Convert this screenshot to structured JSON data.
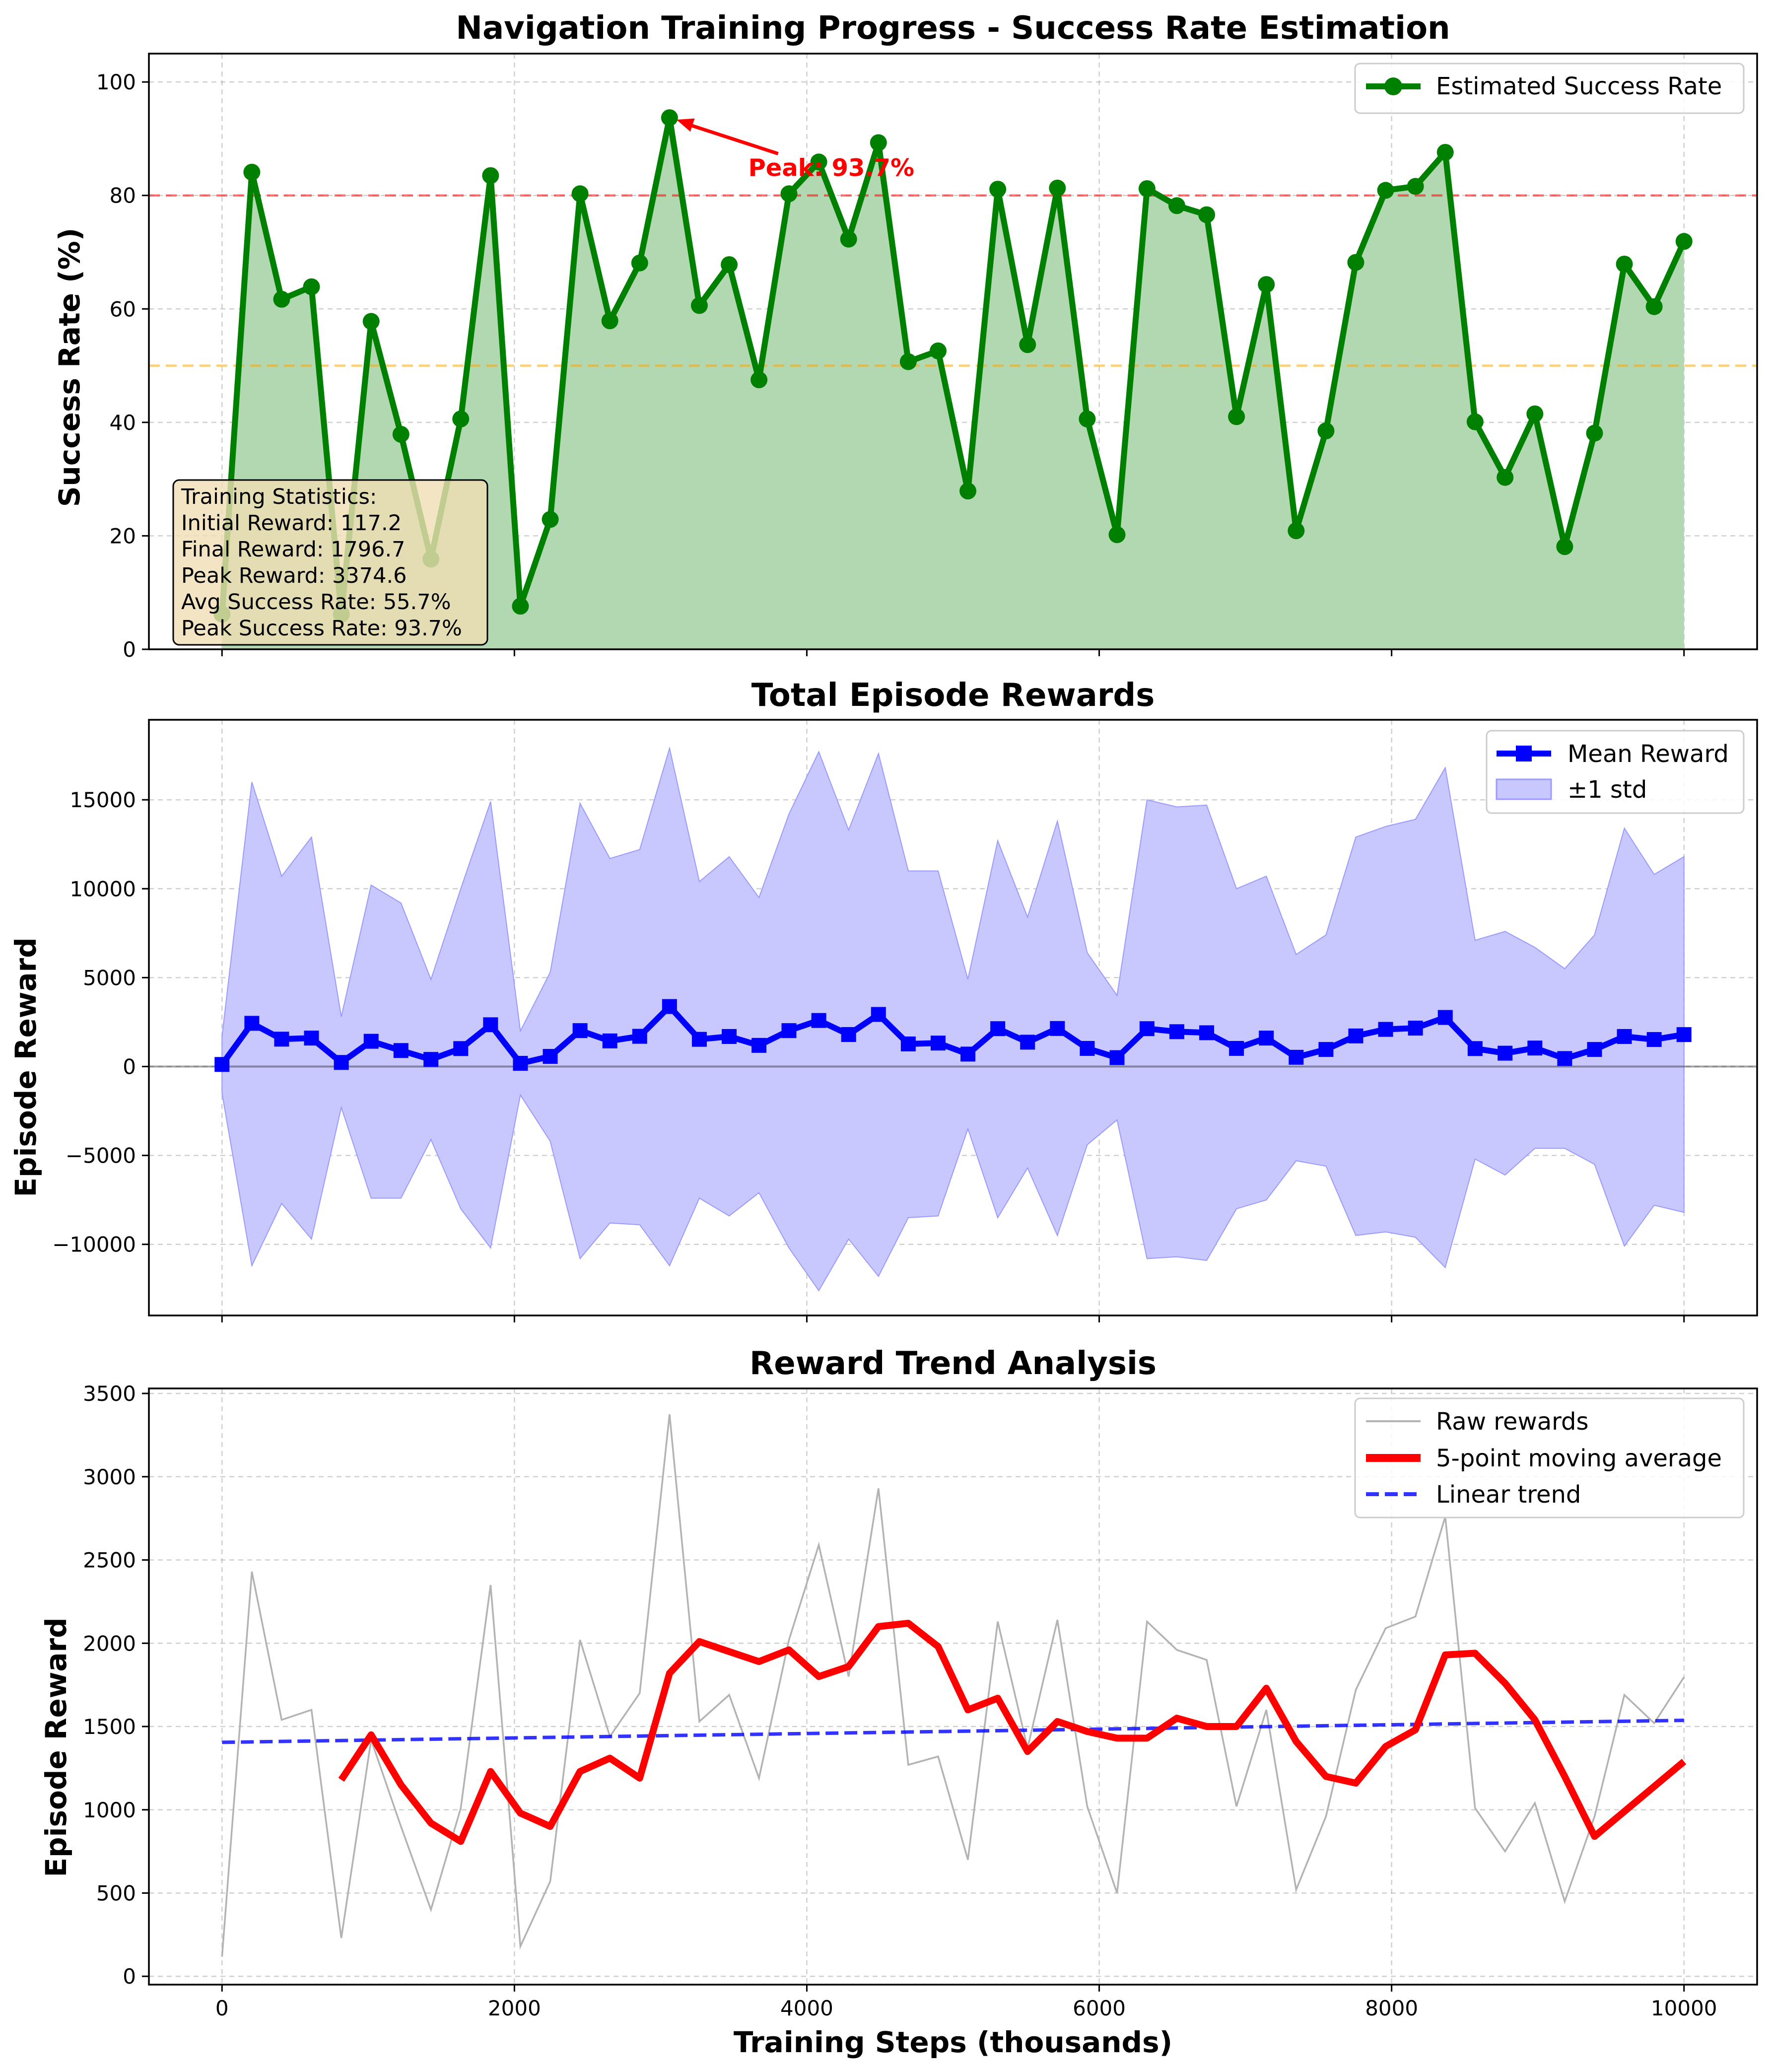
{
  "figure": {
    "xlabel": "Training Steps (thousands)"
  },
  "chart_data": [
    {
      "type": "line",
      "title": "Navigation Training Progress - Success Rate Estimation",
      "xlabel": "",
      "ylabel": "Success Rate (%)",
      "xlim": [
        -500,
        10500
      ],
      "ylim": [
        0,
        105
      ],
      "xticks": [
        0,
        2000,
        4000,
        6000,
        8000,
        10000
      ],
      "yticks": [
        0,
        20,
        40,
        60,
        80,
        100
      ],
      "grid": true,
      "legend_position": "top-right",
      "series": [
        {
          "name": "Estimated Success Rate",
          "color": "#008000",
          "fill_color": "#b2d8b2",
          "marker": "circle",
          "x": [
            0,
            204,
            408,
            612,
            816,
            1020,
            1224,
            1429,
            1633,
            1837,
            2041,
            2245,
            2449,
            2653,
            2857,
            3061,
            3265,
            3469,
            3673,
            3878,
            4082,
            4286,
            4490,
            4694,
            4898,
            5102,
            5306,
            5510,
            5714,
            5918,
            6122,
            6327,
            6531,
            6735,
            6939,
            7143,
            7347,
            7551,
            7755,
            7959,
            8163,
            8367,
            8571,
            8776,
            8980,
            9184,
            9388,
            9592,
            9796,
            10000
          ],
          "y": [
            6.2,
            84.1,
            61.7,
            63.9,
            6.2,
            57.8,
            37.9,
            15.9,
            40.6,
            83.5,
            7.6,
            22.9,
            80.3,
            57.9,
            68.1,
            93.7,
            60.6,
            67.8,
            47.5,
            80.3,
            85.9,
            72.3,
            89.3,
            50.7,
            52.6,
            27.9,
            81.1,
            53.7,
            81.3,
            40.6,
            20.2,
            81.2,
            78.2,
            76.6,
            41.0,
            64.3,
            20.9,
            38.5,
            68.2,
            80.9,
            81.6,
            87.6,
            40.1,
            30.3,
            41.5,
            18.1,
            38.1,
            67.9,
            60.4,
            71.9
          ]
        }
      ],
      "reference_lines": [
        {
          "y": 80,
          "color": "#ff0000"
        },
        {
          "y": 50,
          "color": "#ffa500"
        }
      ],
      "annotation": {
        "text": "Peak: 93.7%",
        "x": 3061,
        "y": 93.7,
        "text_x": 3600,
        "text_y": 85,
        "color": "#ff0000"
      },
      "stats_box": {
        "lines": [
          "Training Statistics:",
          "Initial Reward: 117.2",
          "Final Reward: 1796.7",
          "Peak Reward: 3374.6",
          "Avg Success Rate: 55.7%",
          "Peak Success Rate: 93.7%"
        ],
        "background": "#f0deb4"
      }
    },
    {
      "type": "line",
      "title": "Total Episode Rewards",
      "xlabel": "",
      "ylabel": "Episode Reward",
      "xlim": [
        -500,
        10500
      ],
      "ylim": [
        -14000,
        19500
      ],
      "xticks": [
        0,
        2000,
        4000,
        6000,
        8000,
        10000
      ],
      "yticks": [
        -10000,
        -5000,
        0,
        5000,
        10000,
        15000
      ],
      "grid": true,
      "legend_position": "top-right",
      "zero_line": true,
      "series": [
        {
          "name": "Mean Reward",
          "color": "#0000ff",
          "marker": "square",
          "x": [
            0,
            204,
            408,
            612,
            816,
            1020,
            1224,
            1429,
            1633,
            1837,
            2041,
            2245,
            2449,
            2653,
            2857,
            3061,
            3265,
            3469,
            3673,
            3878,
            4082,
            4286,
            4490,
            4694,
            4898,
            5102,
            5306,
            5510,
            5714,
            5918,
            6122,
            6327,
            6531,
            6735,
            6939,
            7143,
            7347,
            7551,
            7755,
            7959,
            8163,
            8367,
            8571,
            8776,
            8980,
            9184,
            9388,
            9592,
            9796,
            10000
          ],
          "y": [
            117.2,
            2430,
            1540,
            1600,
            230,
            1420,
            900,
            400,
            1010,
            2350,
            180,
            570,
            2020,
            1440,
            1700,
            3374.6,
            1530,
            1690,
            1190,
            2020,
            2590,
            1800,
            2930,
            1270,
            1320,
            700,
            2130,
            1370,
            2140,
            1020,
            500,
            2130,
            1960,
            1900,
            1020,
            1600,
            520,
            960,
            1720,
            2090,
            2160,
            2760,
            1010,
            750,
            1040,
            450,
            960,
            1690,
            1520,
            1796.7
          ]
        },
        {
          "name": "±1 std",
          "color": "#0000ff",
          "fill_color": "#c8c8ff",
          "upper": [
            1700,
            16000,
            10700,
            12900,
            2800,
            10200,
            9200,
            4900,
            10000,
            14900,
            2000,
            5300,
            14800,
            11700,
            12200,
            17900,
            10400,
            11800,
            9500,
            14200,
            17700,
            13300,
            17600,
            11000,
            11000,
            4900,
            12700,
            8400,
            13800,
            6400,
            4000,
            15000,
            14600,
            14700,
            10000,
            10700,
            6300,
            7400,
            12900,
            13500,
            13900,
            16800,
            7100,
            7600,
            6700,
            5500,
            7400,
            13400,
            10800,
            11800
          ],
          "lower": [
            -1500,
            -11200,
            -7700,
            -9700,
            -2300,
            -7400,
            -7400,
            -4100,
            -8000,
            -10200,
            -1600,
            -4200,
            -10800,
            -8800,
            -8900,
            -11200,
            -7400,
            -8400,
            -7100,
            -10200,
            -12600,
            -9700,
            -11800,
            -8500,
            -8400,
            -3500,
            -8500,
            -5700,
            -9500,
            -4400,
            -3000,
            -10800,
            -10700,
            -10900,
            -8000,
            -7500,
            -5300,
            -5600,
            -9500,
            -9300,
            -9600,
            -11300,
            -5200,
            -6100,
            -4600,
            -4600,
            -5500,
            -10100,
            -7800,
            -8200
          ]
        }
      ]
    },
    {
      "type": "line",
      "title": "Reward Trend Analysis",
      "xlabel": "Training Steps (thousands)",
      "ylabel": "Episode Reward",
      "xlim": [
        -500,
        10500
      ],
      "ylim": [
        -50,
        3530
      ],
      "xticks": [
        0,
        2000,
        4000,
        6000,
        8000,
        10000
      ],
      "yticks": [
        0,
        500,
        1000,
        1500,
        2000,
        2500,
        3000,
        3500
      ],
      "grid": true,
      "legend_position": "top-right",
      "series": [
        {
          "name": "Raw rewards",
          "color": "#b3b3b3",
          "style": "solid-thin",
          "x": [
            0,
            204,
            408,
            612,
            816,
            1020,
            1224,
            1429,
            1633,
            1837,
            2041,
            2245,
            2449,
            2653,
            2857,
            3061,
            3265,
            3469,
            3673,
            3878,
            4082,
            4286,
            4490,
            4694,
            4898,
            5102,
            5306,
            5510,
            5714,
            5918,
            6122,
            6327,
            6531,
            6735,
            6939,
            7143,
            7347,
            7551,
            7755,
            7959,
            8163,
            8367,
            8571,
            8776,
            8980,
            9184,
            9388,
            9592,
            9796,
            10000
          ],
          "y": [
            117.2,
            2430,
            1540,
            1600,
            230,
            1420,
            900,
            400,
            1010,
            2350,
            180,
            570,
            2020,
            1440,
            1700,
            3374.6,
            1530,
            1690,
            1190,
            2020,
            2590,
            1800,
            2930,
            1270,
            1320,
            700,
            2130,
            1370,
            2140,
            1020,
            500,
            2130,
            1960,
            1900,
            1020,
            1600,
            520,
            960,
            1720,
            2090,
            2160,
            2760,
            1010,
            750,
            1040,
            450,
            960,
            1690,
            1520,
            1796.7
          ]
        },
        {
          "name": "5-point moving average",
          "color": "#ff0000",
          "style": "solid-thick",
          "x": [
            816,
            1020,
            1224,
            1429,
            1633,
            1837,
            2041,
            2245,
            2449,
            2653,
            2857,
            3061,
            3265,
            3469,
            3673,
            3878,
            4082,
            4286,
            4490,
            4694,
            4898,
            5102,
            5306,
            5510,
            5714,
            5918,
            6122,
            6327,
            6531,
            6735,
            6939,
            7143,
            7347,
            7551,
            7755,
            7959,
            8163,
            8367,
            8571,
            8776,
            8980,
            9184,
            9388,
            10000
          ],
          "y": [
            1180,
            1450,
            1150,
            920,
            810,
            1230,
            980,
            900,
            1230,
            1310,
            1190,
            1820,
            2010,
            1950,
            1890,
            1960,
            1800,
            1860,
            2100,
            2120,
            1980,
            1600,
            1670,
            1350,
            1530,
            1470,
            1430,
            1430,
            1550,
            1500,
            1500,
            1730,
            1410,
            1200,
            1160,
            1380,
            1480,
            1930,
            1940,
            1760,
            1540,
            1200,
            840,
            1290
          ]
        },
        {
          "name": "Linear trend",
          "color": "#0000ff",
          "style": "dashed",
          "x": [
            0,
            10000
          ],
          "y": [
            1405,
            1537
          ]
        }
      ]
    }
  ]
}
